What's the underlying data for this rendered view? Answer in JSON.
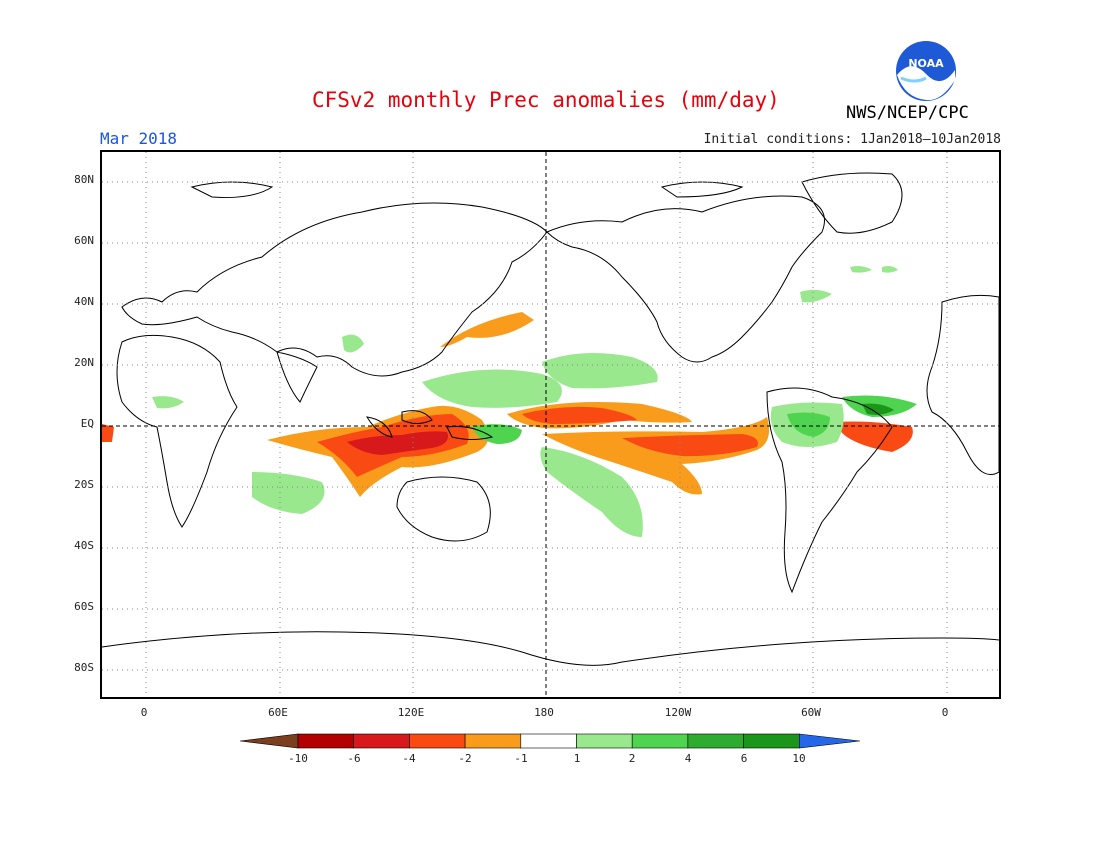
{
  "header": {
    "title": "CFSv2 monthly Prec anomalies (mm/day)",
    "agency": "NWS/NCEP/CPC",
    "period": "Mar 2018",
    "initial_conditions": "Initial conditions: 1Jan2018–10Jan2018",
    "logo_icon": "noaa-logo-icon",
    "logo_text": "NOAA"
  },
  "axes": {
    "lat_labels": [
      "80N",
      "60N",
      "40N",
      "20N",
      "EQ",
      "20S",
      "40S",
      "60S",
      "80S"
    ],
    "lon_labels": [
      "0",
      "60E",
      "120E",
      "180",
      "120W",
      "60W",
      "0"
    ]
  },
  "colorbar": {
    "tick_labels": [
      "-10",
      "-6",
      "-4",
      "-2",
      "-1",
      "1",
      "2",
      "4",
      "6",
      "10"
    ],
    "colors": [
      "#7b3f1e",
      "#b30000",
      "#d7191c",
      "#fa4a14",
      "#f99c1c",
      "#ffffff",
      "#9ae88e",
      "#4fd44f",
      "#2fac2f",
      "#1b961b",
      "#2467e8"
    ]
  },
  "map": {
    "dry_colors": {
      "strong": "#d7191c",
      "moderate": "#fa4a14",
      "weak": "#f99c1c"
    },
    "wet_colors": {
      "weak": "#9ae88e",
      "moderate": "#4fd44f",
      "strong": "#1b961b"
    }
  }
}
